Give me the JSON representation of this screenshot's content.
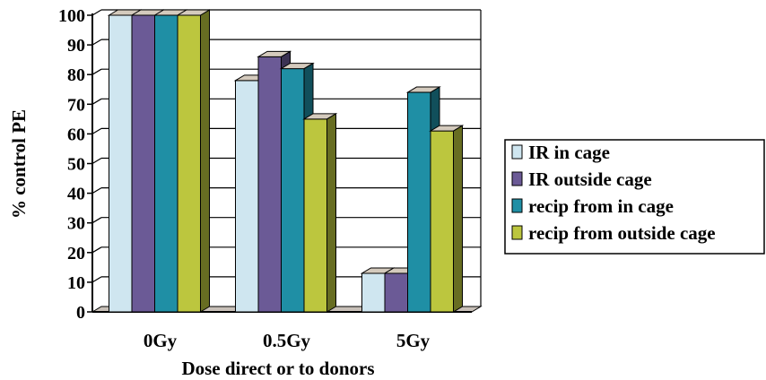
{
  "chart_data": {
    "type": "bar",
    "title": "",
    "xlabel": "Dose direct or to donors",
    "ylabel": "% control PE",
    "categories": [
      "0Gy",
      "0.5Gy",
      "5Gy"
    ],
    "ylim": [
      0,
      100
    ],
    "yticks": [
      "0",
      "10",
      "20",
      "30",
      "40",
      "50",
      "60",
      "70",
      "80",
      "90",
      "100"
    ],
    "grid": true,
    "legend_position": "right",
    "series": [
      {
        "name": "IR in cage",
        "values": [
          100,
          78,
          13
        ],
        "color": "#cfe6f0"
      },
      {
        "name": "IR outside cage",
        "values": [
          100,
          86,
          13
        ],
        "color": "#6b5a96"
      },
      {
        "name": "recip from in cage",
        "values": [
          100,
          82,
          74
        ],
        "color": "#1f8fa5"
      },
      {
        "name": "recip from outside cage",
        "values": [
          100,
          65,
          61
        ],
        "color": "#bcc63e"
      }
    ]
  }
}
